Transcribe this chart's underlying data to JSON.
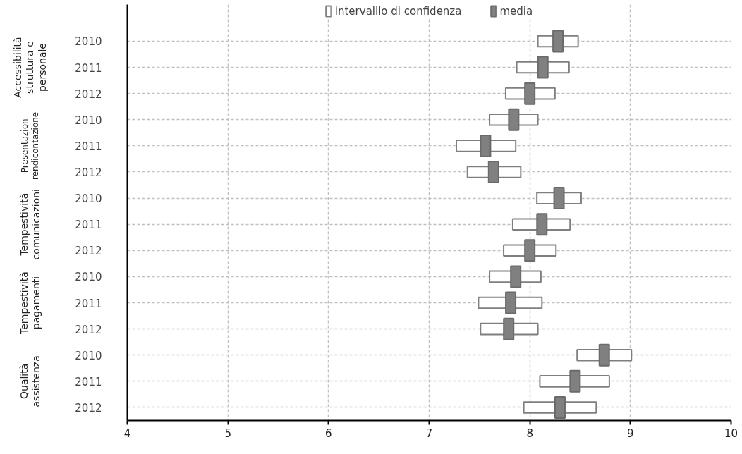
{
  "chart_data": {
    "type": "bar",
    "orientation": "horizontal",
    "categories": [
      "2010",
      "2011",
      "2012",
      "2010",
      "2011",
      "2012",
      "2010",
      "2011",
      "2012",
      "2010",
      "2011",
      "2012",
      "2010",
      "2011",
      "2012"
    ],
    "annotations": [
      "Accessibilità\nstruttura e\npersonale",
      "Presentazion\nrendicontazione",
      "Tempestività\ncomunicazioni",
      "Tempestività\npagamenti",
      "Qualità\nassistenza"
    ],
    "series": [
      {
        "name": "intervalllo di confidenza",
        "color": "#ffffff",
        "base": [
          8.08,
          7.87,
          7.76,
          7.6,
          7.27,
          7.38,
          8.07,
          7.83,
          7.74,
          7.6,
          7.49,
          7.51,
          8.47,
          8.1,
          7.94
        ],
        "values": [
          0.4,
          0.52,
          0.49,
          0.48,
          0.59,
          0.53,
          0.44,
          0.57,
          0.52,
          0.51,
          0.63,
          0.57,
          0.54,
          0.69,
          0.72
        ]
      },
      {
        "name": "media",
        "type": "scatter",
        "marker": "square",
        "color": "#808080",
        "values": [
          8.28,
          8.13,
          8.0,
          7.84,
          7.56,
          7.64,
          8.29,
          8.12,
          8.0,
          7.86,
          7.81,
          7.79,
          8.74,
          8.45,
          8.3
        ]
      }
    ],
    "xlim": [
      4,
      10
    ],
    "xticks": [
      4,
      5,
      6,
      7,
      8,
      9,
      10
    ],
    "grid": true,
    "legend": "top"
  }
}
